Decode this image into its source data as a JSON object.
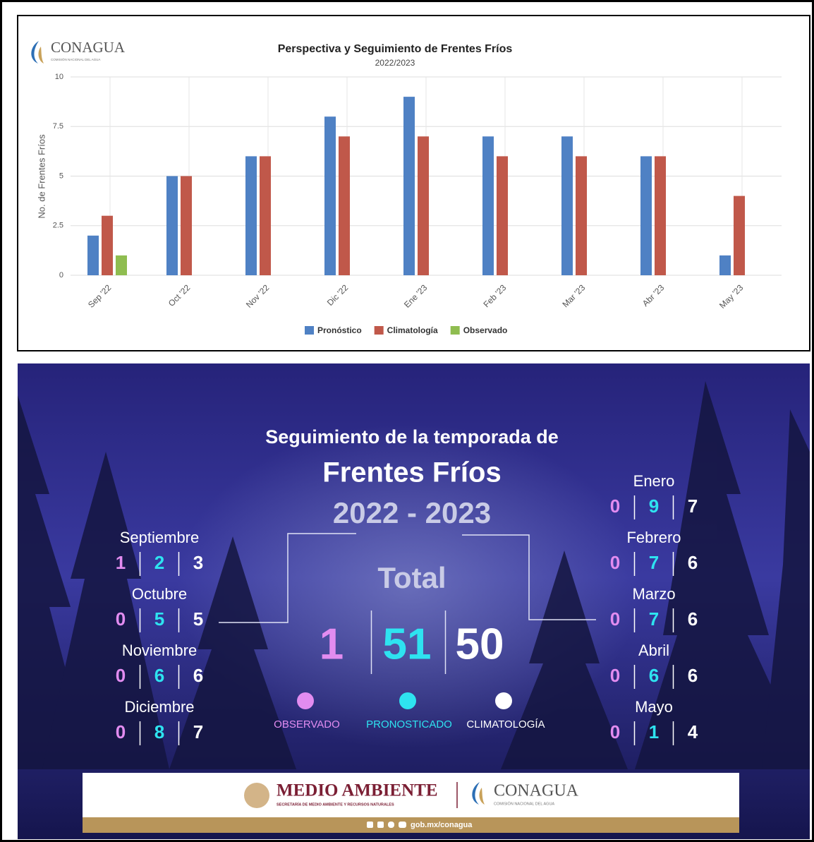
{
  "chart_data": {
    "type": "bar",
    "title": "Perspectiva y Seguimiento de Frentes Fríos",
    "subtitle": "2022/2023",
    "y_label": "No. de Frentes Fríos",
    "categories": [
      "Sep '22",
      "Oct '22",
      "Nov '22",
      "Dic '22",
      "Ene '23",
      "Feb '23",
      "Mar '23",
      "Abr '23",
      "May '23"
    ],
    "series": [
      {
        "name": "Pronóstico",
        "color": "#4f81c4",
        "values": [
          2,
          5,
          6,
          8,
          9,
          7,
          7,
          6,
          1
        ]
      },
      {
        "name": "Climatología",
        "color": "#c0584a",
        "values": [
          3,
          5,
          6,
          7,
          7,
          6,
          6,
          6,
          4
        ]
      },
      {
        "name": "Observado",
        "color": "#8fbd50",
        "values": [
          1,
          0,
          0,
          0,
          0,
          0,
          0,
          0,
          0
        ]
      }
    ],
    "ylim": [
      0,
      10
    ],
    "yticks": [
      0,
      2.5,
      5,
      7.5,
      10
    ],
    "grid": true,
    "legend": "bottom"
  },
  "logo": {
    "name": "CONAGUA",
    "subtitle": "COMISIÓN NACIONAL DEL AGUA"
  },
  "infographic": {
    "heading": "Seguimiento de la temporada de",
    "title": "Frentes Fríos",
    "season": "2022 - 2023",
    "total_label": "Total",
    "totals": [
      1,
      51,
      50
    ],
    "legend": [
      "OBSERVADO",
      "PRONOSTICADO",
      "CLIMATOLOGÍA"
    ],
    "colors": [
      "#e28cf0",
      "#2ee3f0",
      "#ffffff"
    ],
    "months": [
      {
        "name": "Septiembre",
        "values": [
          1,
          2,
          3
        ]
      },
      {
        "name": "Octubre",
        "values": [
          0,
          5,
          5
        ]
      },
      {
        "name": "Noviembre",
        "values": [
          0,
          6,
          6
        ]
      },
      {
        "name": "Diciembre",
        "values": [
          0,
          8,
          7
        ]
      },
      {
        "name": "Enero",
        "values": [
          0,
          9,
          7
        ]
      },
      {
        "name": "Febrero",
        "values": [
          0,
          7,
          6
        ]
      },
      {
        "name": "Marzo",
        "values": [
          0,
          7,
          6
        ]
      },
      {
        "name": "Abril",
        "values": [
          0,
          6,
          6
        ]
      },
      {
        "name": "Mayo",
        "values": [
          0,
          1,
          4
        ]
      }
    ]
  },
  "footer": {
    "brand": "MEDIO AMBIENTE",
    "brand_subtitle": "SECRETARÍA DE MEDIO AMBIENTE Y RECURSOS NATURALES",
    "agency": "CONAGUA",
    "agency_subtitle": "COMISIÓN NACIONAL DEL AGUA",
    "url": "gob.mx/conagua"
  }
}
